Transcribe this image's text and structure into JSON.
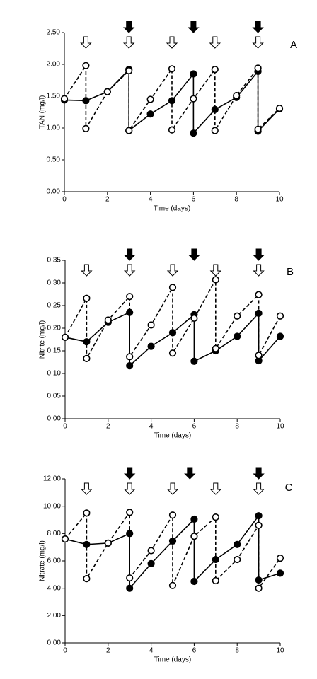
{
  "chart_data": [
    {
      "type": "line",
      "panel_label": "A",
      "ylabel": "TAN  (mg/l)",
      "xlabel": "Time (days)",
      "xlim": [
        0,
        10
      ],
      "xticks": [
        0,
        2,
        4,
        6,
        8,
        10
      ],
      "ylim": [
        0,
        2.5
      ],
      "yticks": [
        {
          "value": 0,
          "label": "0.00"
        },
        {
          "value": 0.5,
          "label": "0.50"
        },
        {
          "value": 1,
          "label": "1.00"
        },
        {
          "value": 1.5,
          "label": "1.50"
        },
        {
          "value": 2,
          "label": "2.00"
        },
        {
          "value": 2.5,
          "label": "2.50"
        }
      ],
      "open_arrows": [
        1,
        3,
        5,
        7,
        9
      ],
      "filled_arrows": [
        3,
        6,
        9
      ],
      "series": [
        {
          "color": "#000000",
          "linestyle": "solid",
          "marker": "filled",
          "x": [
            0,
            1,
            2,
            3,
            3,
            4,
            5,
            6,
            6,
            7,
            8,
            9,
            9,
            10
          ],
          "values": [
            1.44,
            1.43,
            1.57,
            1.92,
            0.96,
            1.22,
            1.43,
            1.85,
            0.92,
            1.29,
            1.48,
            1.89,
            0.95,
            1.3
          ]
        },
        {
          "color": "#000000",
          "linestyle": "dashed",
          "marker": "open",
          "x": [
            0,
            1,
            1,
            2,
            3,
            3,
            4,
            5,
            5,
            6,
            7,
            7,
            8,
            9,
            9,
            10
          ],
          "values": [
            1.46,
            1.98,
            0.99,
            1.57,
            1.9,
            0.96,
            1.45,
            1.93,
            0.97,
            1.46,
            1.92,
            0.96,
            1.51,
            1.94,
            0.98,
            1.31
          ]
        }
      ]
    },
    {
      "type": "line",
      "panel_label": "B",
      "ylabel": "Nitrite (mg/l)",
      "xlabel": "Time (days)",
      "xlim": [
        0,
        10
      ],
      "xticks": [
        0,
        2,
        4,
        6,
        8,
        10
      ],
      "ylim": [
        0,
        0.35
      ],
      "yticks": [
        {
          "value": 0,
          "label": "0.00"
        },
        {
          "value": 0.05,
          "label": "0.05"
        },
        {
          "value": 0.1,
          "label": "0.10"
        },
        {
          "value": 0.15,
          "label": "0.15"
        },
        {
          "value": 0.2,
          "label": "0.20"
        },
        {
          "value": 0.25,
          "label": "0.25"
        },
        {
          "value": 0.3,
          "label": "0.30"
        },
        {
          "value": 0.35,
          "label": "0.35"
        }
      ],
      "open_arrows": [
        1,
        3,
        5,
        7,
        9
      ],
      "filled_arrows": [
        3,
        6,
        9
      ],
      "series": [
        {
          "color": "#000000",
          "linestyle": "solid",
          "marker": "filled",
          "x": [
            0,
            1,
            2,
            3,
            3,
            4,
            5,
            6,
            6,
            7,
            8,
            9,
            9,
            10
          ],
          "values": [
            0.18,
            0.17,
            0.213,
            0.235,
            0.117,
            0.16,
            0.19,
            0.23,
            0.127,
            0.15,
            0.182,
            0.233,
            0.128,
            0.182
          ]
        },
        {
          "color": "#000000",
          "linestyle": "dashed",
          "marker": "open",
          "x": [
            0,
            1,
            1,
            2,
            3,
            3,
            4,
            5,
            5,
            6,
            7,
            7,
            8,
            9,
            9,
            10
          ],
          "values": [
            0.18,
            0.266,
            0.133,
            0.218,
            0.27,
            0.137,
            0.207,
            0.29,
            0.145,
            0.222,
            0.307,
            0.155,
            0.227,
            0.274,
            0.14,
            0.227
          ]
        }
      ]
    },
    {
      "type": "line",
      "panel_label": "C",
      "ylabel": "Nitrate (mg/l)",
      "xlabel": "Time (days)",
      "xlim": [
        0,
        10
      ],
      "xticks": [
        0,
        2,
        4,
        6,
        8,
        10
      ],
      "ylim": [
        0,
        12
      ],
      "yticks": [
        {
          "value": 0,
          "label": "0.00"
        },
        {
          "value": 2,
          "label": "2.00"
        },
        {
          "value": 4,
          "label": "4.00"
        },
        {
          "value": 6,
          "label": "6.00"
        },
        {
          "value": 8,
          "label": "8.00"
        },
        {
          "value": 10,
          "label": "10.00"
        },
        {
          "value": 12,
          "label": "12.00"
        }
      ],
      "open_arrows": [
        1,
        3,
        5,
        7,
        9
      ],
      "filled_arrows": [
        3,
        5.8,
        9
      ],
      "series": [
        {
          "color": "#000000",
          "linestyle": "solid",
          "marker": "filled",
          "x": [
            0,
            1,
            2,
            3,
            3,
            4,
            5,
            6,
            6,
            7,
            8,
            9,
            9,
            10
          ],
          "values": [
            7.6,
            7.2,
            7.3,
            8.0,
            4.0,
            5.8,
            7.45,
            9.05,
            4.5,
            6.1,
            7.2,
            9.3,
            4.6,
            5.1
          ]
        },
        {
          "color": "#000000",
          "linestyle": "dashed",
          "marker": "open",
          "x": [
            0,
            1,
            1,
            2,
            3,
            3,
            4,
            5,
            5,
            6,
            7,
            7,
            8,
            9,
            9,
            10
          ],
          "values": [
            7.6,
            9.5,
            4.7,
            7.3,
            9.55,
            4.75,
            6.75,
            9.35,
            4.2,
            7.8,
            9.2,
            4.55,
            6.1,
            8.6,
            4.0,
            6.2
          ]
        }
      ]
    }
  ]
}
